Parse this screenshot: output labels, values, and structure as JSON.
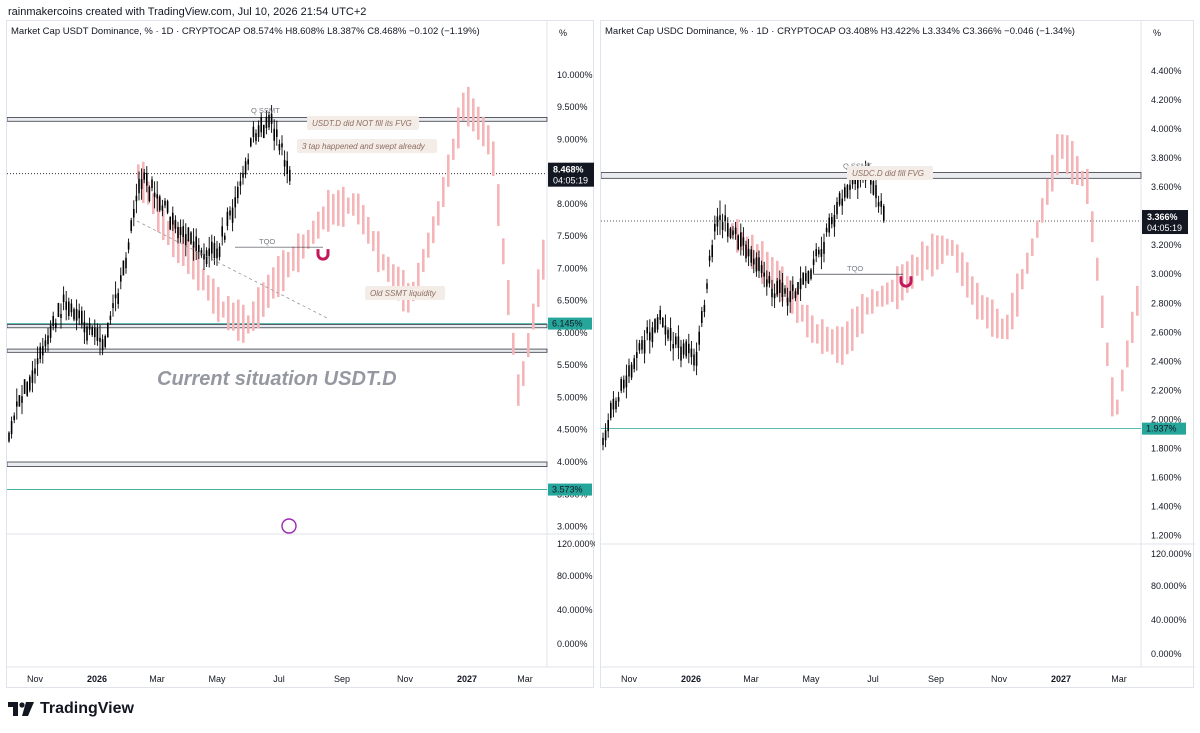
{
  "header": {
    "credit": "rainmakercoins created with TradingView.com, Jul 10, 2026 21:54 UTC+2"
  },
  "footer": {
    "brand": "TradingView"
  },
  "colors": {
    "candle": "#000000",
    "projection": "#f5b5b8",
    "teal": "#26a69a",
    "label_dark": "#131722",
    "magnet": "#c2185b",
    "note_bg": "#f4ece6",
    "note_text": "#8d6e63"
  },
  "chart_data": [
    {
      "type": "candlestick",
      "legend": "Market Cap USDT Dominance, % · 1D · CRYPTOCAP  O8.574%  H8.608%  L8.387%  C8.468%  −0.102 (−1.19%)",
      "axis_unit": "%",
      "yticks": [
        "10.000%",
        "9.500%",
        "9.000%",
        "8.500%",
        "8.000%",
        "7.500%",
        "7.000%",
        "6.500%",
        "6.000%",
        "5.500%",
        "5.000%",
        "4.500%",
        "4.000%",
        "3.500%",
        "3.000%"
      ],
      "ytick_values": [
        10.0,
        9.5,
        9.0,
        8.5,
        8.0,
        7.5,
        7.0,
        6.5,
        6.0,
        5.5,
        5.0,
        4.5,
        4.0,
        3.5,
        3.0
      ],
      "ylim": [
        2.9,
        10.4
      ],
      "xticks": [
        "Nov",
        "2026",
        "Mar",
        "May",
        "Jul",
        "Sep",
        "Nov",
        "2027",
        "Mar"
      ],
      "price_label": {
        "value": 8.468,
        "text": "8.468%",
        "countdown": "04:05:19"
      },
      "level_label": {
        "value": 6.145,
        "text": "6.145%"
      },
      "level_label2": {
        "value": 3.573,
        "text": "3.573%"
      },
      "zones": [
        [
          9.28,
          9.34
        ],
        [
          6.08,
          6.13
        ],
        [
          5.7,
          5.75
        ],
        [
          3.93,
          4.0
        ]
      ],
      "hlines": [
        {
          "y": 6.145,
          "kind": "teal"
        },
        {
          "y": 3.573,
          "kind": "teal"
        }
      ],
      "osc_yticks": [
        "120.000%",
        "80.000%",
        "40.000%",
        "0.000%"
      ],
      "annotations": {
        "ssmt": "Q SSMT",
        "fvg_note": "USDT.D did NOT fill its FVG",
        "tap_note": "3 tap happened and swept already",
        "tqo": "TQO",
        "liquidity_note": "Old SSMT liquidity",
        "title": "Current situation USDT.D"
      },
      "series": [
        {
          "name": "history",
          "values": [
            4.5,
            5.2,
            5.9,
            6.5,
            6.1,
            5.8,
            6.8,
            8.4,
            8.1,
            7.6,
            7.3,
            7.2,
            7.9,
            9.0,
            9.3,
            8.5
          ]
        },
        {
          "name": "projection",
          "values": [
            8.5,
            7.6,
            7.1,
            6.4,
            6.1,
            6.8,
            7.3,
            7.9,
            8.0,
            7.1,
            6.5,
            7.8,
            9.6,
            8.9,
            5.0,
            7.4
          ]
        }
      ]
    },
    {
      "type": "candlestick",
      "legend": "Market Cap USDC Dominance, % · 1D · CRYPTOCAP  O3.408%  H3.422%  L3.334%  C3.366%  −0.046 (−1.34%)",
      "axis_unit": "%",
      "yticks": [
        "4.400%",
        "4.200%",
        "4.000%",
        "3.800%",
        "3.600%",
        "3.400%",
        "3.200%",
        "3.000%",
        "2.800%",
        "2.600%",
        "2.400%",
        "2.200%",
        "2.000%",
        "1.800%",
        "1.600%",
        "1.400%",
        "1.200%"
      ],
      "ytick_values": [
        4.4,
        4.2,
        4.0,
        3.8,
        3.6,
        3.4,
        3.2,
        3.0,
        2.8,
        2.6,
        2.4,
        2.2,
        2.0,
        1.8,
        1.6,
        1.4,
        1.2
      ],
      "ylim": [
        1.15,
        4.55
      ],
      "xticks": [
        "Nov",
        "2026",
        "Mar",
        "May",
        "Jul",
        "Sep",
        "Nov",
        "2027",
        "Mar"
      ],
      "price_label": {
        "value": 3.366,
        "text": "3.366%",
        "countdown": "04:05:19"
      },
      "level_label": {
        "value": 1.937,
        "text": "1.937%"
      },
      "zones": [
        [
          3.66,
          3.7
        ]
      ],
      "hlines": [
        {
          "y": 1.937,
          "kind": "teal"
        }
      ],
      "osc_yticks": [
        "120.000%",
        "80.000%",
        "40.000%",
        "0.000%"
      ],
      "annotations": {
        "ssmt": "Q SSMT",
        "fvg_note": "USDC.D did fill FVG",
        "tqo": "TQO"
      },
      "series": [
        {
          "name": "history",
          "values": [
            1.9,
            2.2,
            2.5,
            2.7,
            2.5,
            2.4,
            3.4,
            3.3,
            3.1,
            2.9,
            2.85,
            3.0,
            3.3,
            3.6,
            3.7,
            3.4
          ]
        },
        {
          "name": "projection",
          "values": [
            3.3,
            3.1,
            2.9,
            2.6,
            2.5,
            2.8,
            2.9,
            3.1,
            3.2,
            2.8,
            2.6,
            3.2,
            3.9,
            3.6,
            2.0,
            3.0
          ]
        }
      ]
    }
  ]
}
